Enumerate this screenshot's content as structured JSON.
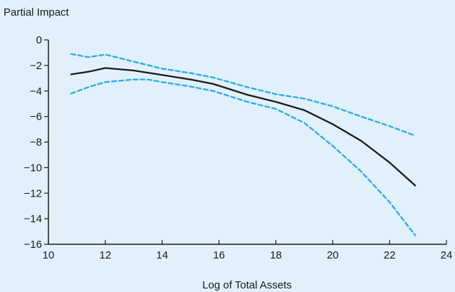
{
  "chart_data": {
    "type": "line",
    "title": "",
    "ylabel": "Partial Impact",
    "xlabel": "Log of Total Assets",
    "xlim": [
      10,
      24
    ],
    "ylim": [
      -16,
      0
    ],
    "xticks": [
      10,
      12,
      14,
      16,
      18,
      20,
      22,
      24
    ],
    "xtick_labels": [
      "10",
      "12",
      "14",
      "16",
      "18",
      "20",
      "22",
      "24"
    ],
    "yticks": [
      0,
      -2,
      -4,
      -6,
      -8,
      -10,
      -12,
      -14,
      -16
    ],
    "ytick_labels": [
      "0",
      "−2",
      "−4",
      "−6",
      "−8",
      "−10",
      "−12",
      "−14",
      "−16"
    ],
    "grid": false,
    "legend": "none",
    "series": [
      {
        "style": "solid",
        "color": "#1a1a1a",
        "points": [
          [
            10.8,
            -2.7
          ],
          [
            11.4,
            -2.5
          ],
          [
            12.0,
            -2.2
          ],
          [
            13.0,
            -2.4
          ],
          [
            14.0,
            -2.75
          ],
          [
            15.0,
            -3.1
          ],
          [
            15.8,
            -3.45
          ],
          [
            17.0,
            -4.3
          ],
          [
            18.0,
            -4.85
          ],
          [
            19.0,
            -5.5
          ],
          [
            20.0,
            -6.6
          ],
          [
            21.0,
            -7.9
          ],
          [
            22.0,
            -9.6
          ],
          [
            22.9,
            -11.4
          ]
        ]
      },
      {
        "style": "dashed",
        "color": "#29abe2",
        "points": [
          [
            10.8,
            -1.1
          ],
          [
            11.4,
            -1.35
          ],
          [
            12.0,
            -1.15
          ],
          [
            13.0,
            -1.7
          ],
          [
            14.0,
            -2.25
          ],
          [
            15.0,
            -2.6
          ],
          [
            15.8,
            -2.95
          ],
          [
            17.0,
            -3.7
          ],
          [
            18.0,
            -4.25
          ],
          [
            19.0,
            -4.6
          ],
          [
            20.0,
            -5.2
          ],
          [
            21.0,
            -6.0
          ],
          [
            22.0,
            -6.75
          ],
          [
            22.9,
            -7.5
          ]
        ]
      },
      {
        "style": "dashed",
        "color": "#29abe2",
        "points": [
          [
            10.8,
            -4.2
          ],
          [
            11.4,
            -3.7
          ],
          [
            12.0,
            -3.3
          ],
          [
            13.0,
            -3.1
          ],
          [
            13.5,
            -3.1
          ],
          [
            14.0,
            -3.3
          ],
          [
            15.0,
            -3.65
          ],
          [
            15.8,
            -4.0
          ],
          [
            17.0,
            -4.85
          ],
          [
            18.0,
            -5.4
          ],
          [
            19.0,
            -6.5
          ],
          [
            20.0,
            -8.3
          ],
          [
            21.0,
            -10.3
          ],
          [
            22.0,
            -12.7
          ],
          [
            22.9,
            -15.3
          ]
        ]
      }
    ]
  }
}
